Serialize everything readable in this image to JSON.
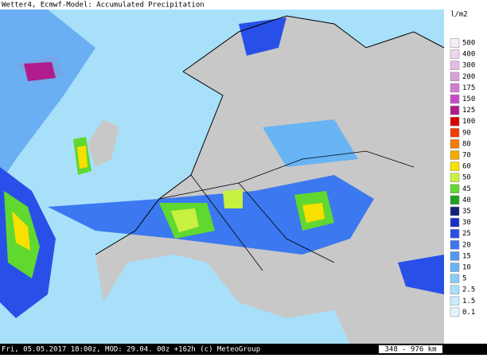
{
  "header": {
    "title": "Wetter4, Ecmwf-Model: Accumulated Precipitation"
  },
  "legend": {
    "unit": "l/m2",
    "items": [
      {
        "label": "500",
        "color": "#f6eef6"
      },
      {
        "label": "400",
        "color": "#ecd6ec"
      },
      {
        "label": "300",
        "color": "#e2bce2"
      },
      {
        "label": "200",
        "color": "#d89ed8"
      },
      {
        "label": "175",
        "color": "#d27ad2"
      },
      {
        "label": "150",
        "color": "#c84cc8"
      },
      {
        "label": "125",
        "color": "#b01c8c"
      },
      {
        "label": "100",
        "color": "#d80000"
      },
      {
        "label": "90",
        "color": "#f03c00"
      },
      {
        "label": "80",
        "color": "#f87800"
      },
      {
        "label": "70",
        "color": "#f8a800"
      },
      {
        "label": "60",
        "color": "#f8e000"
      },
      {
        "label": "50",
        "color": "#c8f040"
      },
      {
        "label": "45",
        "color": "#60d830"
      },
      {
        "label": "40",
        "color": "#20a020"
      },
      {
        "label": "35",
        "color": "#102078"
      },
      {
        "label": "30",
        "color": "#1830c0"
      },
      {
        "label": "25",
        "color": "#2850e8"
      },
      {
        "label": "20",
        "color": "#3c78f0"
      },
      {
        "label": "15",
        "color": "#5098f0"
      },
      {
        "label": "10",
        "color": "#68b4f4"
      },
      {
        "label": "5",
        "color": "#88ccf8"
      },
      {
        "label": "2.5",
        "color": "#a8e0fa"
      },
      {
        "label": "1.5",
        "color": "#c8ecfc"
      },
      {
        "label": "0.1",
        "color": "#e2f4fc"
      }
    ]
  },
  "footer": {
    "info": "Fri, 05.05.2017 18:00z, MOD: 29.04. 00z +162h (c) MeteoGroup",
    "scale": "348 - 976 km"
  }
}
